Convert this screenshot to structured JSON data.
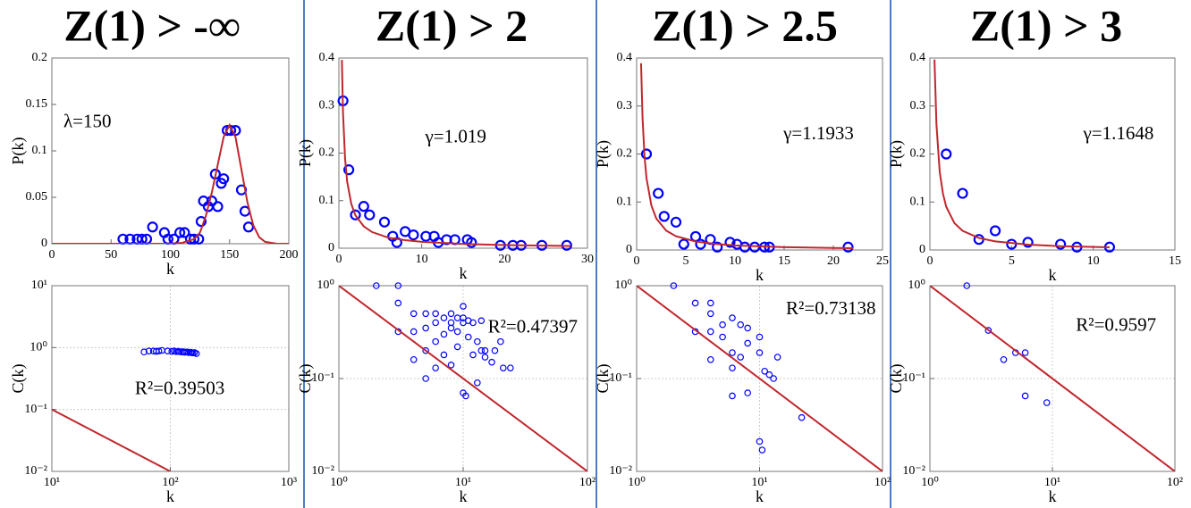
{
  "chart_data": [
    {
      "type": "scatter",
      "title": "Z(1) > -∞",
      "xlabel": "k",
      "ylabel": "P(k)",
      "annotation": "λ=150",
      "xlim": [
        0,
        200
      ],
      "xticks": [
        0,
        50,
        100,
        150,
        200
      ],
      "ylim": [
        0,
        0.2
      ],
      "yticks": [
        0,
        0.05,
        0.1,
        0.15,
        0.2
      ],
      "grid": false,
      "xscale": "linear",
      "yscale": "linear",
      "series": [
        {
          "type": "scatter",
          "color": "#0000ff",
          "x": [
            60,
            66,
            72,
            76,
            80,
            85,
            95,
            98,
            103,
            108,
            112,
            117,
            120,
            124,
            126,
            128,
            132,
            135,
            138,
            140,
            143,
            145,
            148,
            151,
            155,
            160,
            163,
            166
          ],
          "values": [
            0.005,
            0.005,
            0.005,
            0.005,
            0.005,
            0.018,
            0.012,
            0.005,
            0.005,
            0.012,
            0.012,
            0.005,
            0.005,
            0.005,
            0.024,
            0.046,
            0.04,
            0.046,
            0.075,
            0.04,
            0.065,
            0.07,
            0.122,
            0.122,
            0.122,
            0.058,
            0.035,
            0.018
          ]
        },
        {
          "type": "line",
          "color": "#c0272d",
          "x": [
            0,
            100,
            110,
            120,
            125,
            130,
            135,
            140,
            145,
            150,
            155,
            160,
            165,
            170,
            175,
            180,
            190,
            200
          ],
          "values": [
            0,
            0,
            0.001,
            0.005,
            0.012,
            0.03,
            0.055,
            0.085,
            0.115,
            0.128,
            0.115,
            0.08,
            0.045,
            0.02,
            0.007,
            0.002,
            0,
            0
          ]
        }
      ]
    },
    {
      "type": "scatter",
      "title": "Z(1) > 2",
      "xlabel": "k",
      "ylabel": "P(k)",
      "annotation": "γ=1.019",
      "xlim": [
        0,
        30
      ],
      "xticks": [
        0,
        10,
        20,
        30
      ],
      "ylim": [
        0,
        0.4
      ],
      "yticks": [
        0,
        0.1,
        0.2,
        0.3,
        0.4
      ],
      "grid": false,
      "xscale": "linear",
      "yscale": "linear",
      "series": [
        {
          "type": "scatter",
          "color": "#0000ff",
          "x": [
            0.5,
            1.2,
            2,
            3,
            3.7,
            5.5,
            6.5,
            7,
            8,
            9,
            10.5,
            11.5,
            12,
            13,
            14,
            15.5,
            16,
            19.5,
            21,
            22,
            24.5,
            27.5
          ],
          "values": [
            0.31,
            0.165,
            0.07,
            0.088,
            0.07,
            0.055,
            0.025,
            0.012,
            0.035,
            0.028,
            0.025,
            0.025,
            0.012,
            0.018,
            0.018,
            0.018,
            0.012,
            0.006,
            0.006,
            0.006,
            0.006,
            0.006
          ]
        },
        {
          "type": "line",
          "color": "#c0272d",
          "x": [
            0.36,
            0.5,
            0.75,
            1,
            1.5,
            2,
            3,
            4,
            6,
            8,
            10,
            15,
            20,
            25,
            28
          ],
          "values": [
            0.396,
            0.284,
            0.188,
            0.14,
            0.093,
            0.069,
            0.046,
            0.034,
            0.022,
            0.017,
            0.0134,
            0.0089,
            0.0066,
            0.0053,
            0.0047
          ]
        }
      ]
    },
    {
      "type": "scatter",
      "title": "Z(1) > 2.5",
      "xlabel": "k",
      "ylabel": "P(k)",
      "annotation": "γ=1.1933",
      "xlim": [
        0,
        25
      ],
      "xticks": [
        0,
        5,
        10,
        15,
        20,
        25
      ],
      "ylim": [
        0,
        0.4
      ],
      "yticks": [
        0,
        0.1,
        0.2,
        0.3,
        0.4
      ],
      "grid": false,
      "xscale": "linear",
      "yscale": "linear",
      "series": [
        {
          "type": "scatter",
          "color": "#0000ff",
          "x": [
            1,
            2.2,
            2.8,
            4,
            4.8,
            6,
            6.5,
            7.5,
            8.2,
            9.5,
            10.2,
            11,
            12,
            13,
            13.5,
            21.5
          ],
          "values": [
            0.2,
            0.118,
            0.07,
            0.058,
            0.012,
            0.028,
            0.012,
            0.022,
            0.006,
            0.016,
            0.012,
            0.006,
            0.006,
            0.006,
            0.006,
            0.006
          ]
        },
        {
          "type": "line",
          "color": "#c0272d",
          "x": [
            0.45,
            0.6,
            0.8,
            1,
            1.5,
            2,
            3,
            4,
            6,
            8,
            10,
            15,
            20,
            22
          ],
          "values": [
            0.389,
            0.276,
            0.196,
            0.15,
            0.0926,
            0.0656,
            0.0404,
            0.0287,
            0.0177,
            0.0126,
            0.0096,
            0.0059,
            0.0042,
            0.0037
          ]
        }
      ]
    },
    {
      "type": "scatter",
      "title": "Z(1) > 3",
      "xlabel": "k",
      "ylabel": "P(k)",
      "annotation": "γ=1.1648",
      "xlim": [
        0,
        15
      ],
      "xticks": [
        0,
        5,
        10,
        15
      ],
      "ylim": [
        0,
        0.4
      ],
      "yticks": [
        0,
        0.1,
        0.2,
        0.3,
        0.4
      ],
      "grid": false,
      "xscale": "linear",
      "yscale": "linear",
      "series": [
        {
          "type": "scatter",
          "color": "#0000ff",
          "x": [
            1,
            2,
            3,
            4,
            5,
            6,
            8,
            9,
            11
          ],
          "values": [
            0.2,
            0.118,
            0.022,
            0.04,
            0.012,
            0.016,
            0.012,
            0.006,
            0.006
          ]
        },
        {
          "type": "line",
          "color": "#c0272d",
          "x": [
            0.28,
            0.4,
            0.6,
            0.8,
            1,
            1.5,
            2,
            3,
            4,
            6,
            8,
            11
          ],
          "values": [
            0.397,
            0.262,
            0.163,
            0.117,
            0.09,
            0.056,
            0.04,
            0.025,
            0.0179,
            0.0112,
            0.008,
            0.0055
          ]
        }
      ]
    },
    {
      "type": "scatter",
      "xlabel": "k",
      "ylabel": "C(k)",
      "annotation": "R²=0.39503",
      "xlim": [
        10,
        1000
      ],
      "xticks": [
        {
          "value": 10,
          "label": "10¹"
        },
        {
          "value": 100,
          "label": "10²"
        },
        {
          "value": 1000,
          "label": "10³"
        }
      ],
      "ylim": [
        0.01,
        10
      ],
      "yticks": [
        {
          "value": 0.01,
          "label": "10⁻²"
        },
        {
          "value": 0.1,
          "label": "10⁻¹"
        },
        {
          "value": 1,
          "label": "10⁰"
        },
        {
          "value": 10,
          "label": "10¹"
        }
      ],
      "grid": true,
      "xscale": "log",
      "yscale": "log",
      "series": [
        {
          "type": "scatter",
          "color": "#0000ff",
          "x": [
            60,
            66,
            72,
            76,
            80,
            85,
            95,
            103,
            108,
            112,
            117,
            120,
            124,
            128,
            132,
            138,
            143,
            148,
            151,
            155,
            160,
            166
          ],
          "values": [
            0.85,
            0.88,
            0.88,
            0.87,
            0.88,
            0.9,
            0.88,
            0.87,
            0.88,
            0.86,
            0.87,
            0.86,
            0.85,
            0.86,
            0.84,
            0.85,
            0.83,
            0.84,
            0.83,
            0.82,
            0.83,
            0.8
          ]
        },
        {
          "type": "line",
          "color": "#c0272d",
          "x": [
            10,
            100
          ],
          "values": [
            0.1,
            0.01
          ]
        }
      ]
    },
    {
      "type": "scatter",
      "xlabel": "k",
      "ylabel": "C(k)",
      "annotation": "R²=0.47397",
      "xlim": [
        1,
        100
      ],
      "xticks": [
        {
          "value": 1,
          "label": "10⁰"
        },
        {
          "value": 10,
          "label": "10¹"
        },
        {
          "value": 100,
          "label": "10²"
        }
      ],
      "ylim": [
        0.01,
        1
      ],
      "yticks": [
        {
          "value": 0.01,
          "label": "10⁻²"
        },
        {
          "value": 0.1,
          "label": "10⁻¹"
        },
        {
          "value": 1,
          "label": "10⁰"
        }
      ],
      "grid": true,
      "xscale": "log",
      "yscale": "log",
      "series": [
        {
          "type": "scatter",
          "color": "#0000ff",
          "x": [
            2,
            3,
            3,
            3,
            4,
            4,
            4,
            5,
            5,
            5,
            5,
            6,
            6,
            6,
            6,
            7,
            7,
            7,
            8,
            8,
            8,
            8,
            9,
            9,
            9,
            10,
            10,
            10,
            10,
            10.5,
            11,
            11,
            12,
            12,
            13,
            13,
            14,
            14,
            15,
            15,
            17,
            18,
            20,
            21,
            24
          ],
          "values": [
            1,
            1,
            0.65,
            0.32,
            0.5,
            0.32,
            0.16,
            0.5,
            0.35,
            0.2,
            0.1,
            0.5,
            0.4,
            0.25,
            0.13,
            0.45,
            0.3,
            0.18,
            0.5,
            0.4,
            0.35,
            0.14,
            0.45,
            0.32,
            0.22,
            0.6,
            0.45,
            0.4,
            0.07,
            0.065,
            0.42,
            0.28,
            0.4,
            0.18,
            0.25,
            0.09,
            0.42,
            0.2,
            0.2,
            0.17,
            0.15,
            0.2,
            0.25,
            0.13,
            0.13
          ]
        },
        {
          "type": "line",
          "color": "#c0272d",
          "x": [
            1,
            100
          ],
          "values": [
            1,
            0.01
          ]
        }
      ]
    },
    {
      "type": "scatter",
      "xlabel": "k",
      "ylabel": "C(k)",
      "annotation": "R²=0.73138",
      "xlim": [
        1,
        100
      ],
      "xticks": [
        {
          "value": 1,
          "label": "10⁰"
        },
        {
          "value": 10,
          "label": "10¹"
        },
        {
          "value": 100,
          "label": "10²"
        }
      ],
      "ylim": [
        0.01,
        1
      ],
      "yticks": [
        {
          "value": 0.01,
          "label": "10⁻²"
        },
        {
          "value": 0.1,
          "label": "10⁻¹"
        },
        {
          "value": 1,
          "label": "10⁰"
        }
      ],
      "grid": true,
      "xscale": "log",
      "yscale": "log",
      "series": [
        {
          "type": "scatter",
          "color": "#0000ff",
          "x": [
            2,
            3,
            3,
            4,
            4,
            4,
            4,
            5,
            5,
            6,
            6,
            6,
            6,
            7,
            7,
            8,
            8,
            8,
            10,
            10,
            10,
            10.5,
            11,
            12,
            13,
            14,
            22
          ],
          "values": [
            1,
            0.65,
            0.32,
            0.65,
            0.5,
            0.32,
            0.16,
            0.38,
            0.28,
            0.45,
            0.19,
            0.13,
            0.065,
            0.38,
            0.17,
            0.35,
            0.24,
            0.07,
            0.28,
            0.19,
            0.021,
            0.017,
            0.12,
            0.11,
            0.1,
            0.17,
            0.038
          ]
        },
        {
          "type": "line",
          "color": "#c0272d",
          "x": [
            1,
            100
          ],
          "values": [
            1,
            0.01
          ]
        }
      ]
    },
    {
      "type": "scatter",
      "xlabel": "k",
      "ylabel": "C(k)",
      "annotation": "R²=0.9597",
      "xlim": [
        1,
        100
      ],
      "xticks": [
        {
          "value": 1,
          "label": "10⁰"
        },
        {
          "value": 10,
          "label": "10¹"
        },
        {
          "value": 100,
          "label": "10²"
        }
      ],
      "ylim": [
        0.01,
        1
      ],
      "yticks": [
        {
          "value": 0.01,
          "label": "10⁻²"
        },
        {
          "value": 0.1,
          "label": "10⁻¹"
        },
        {
          "value": 1,
          "label": "10⁰"
        }
      ],
      "grid": true,
      "xscale": "log",
      "yscale": "log",
      "series": [
        {
          "type": "scatter",
          "color": "#0000ff",
          "x": [
            2,
            3,
            4,
            5,
            6,
            6,
            9
          ],
          "values": [
            1,
            0.33,
            0.16,
            0.19,
            0.19,
            0.065,
            0.055
          ]
        },
        {
          "type": "line",
          "color": "#c0272d",
          "x": [
            1,
            100
          ],
          "values": [
            1,
            0.01
          ]
        }
      ]
    }
  ]
}
